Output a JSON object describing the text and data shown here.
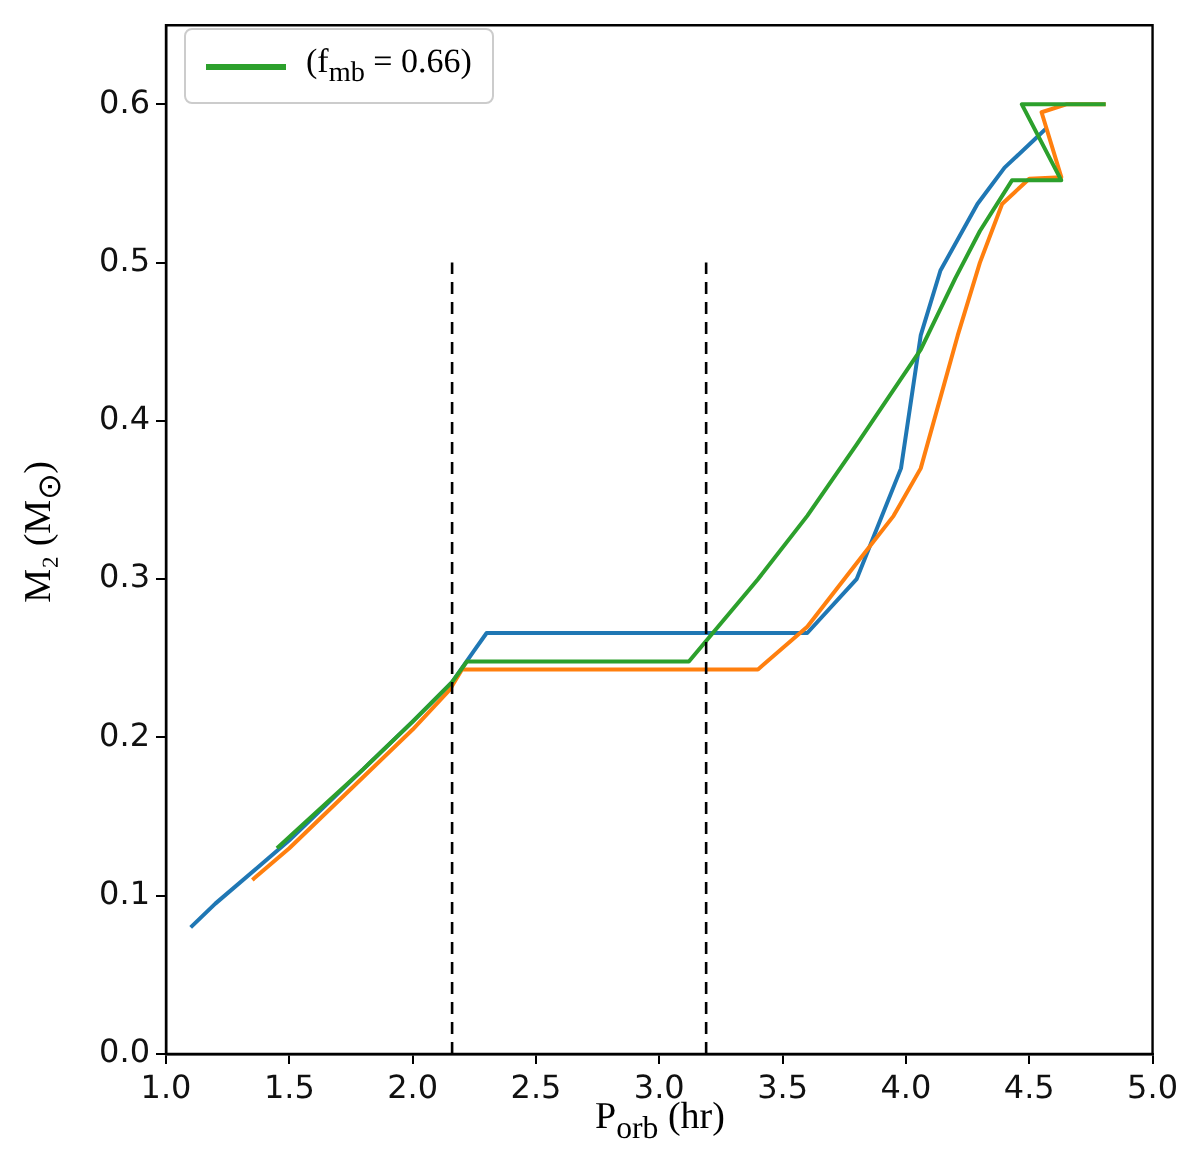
{
  "chart_data": {
    "type": "line",
    "xlabel": "P$_{orb}$ (hr)",
    "ylabel": "M₂ (M$_{⊙}$)",
    "xlim": [
      1,
      5
    ],
    "xticks": [
      {
        "value": 1,
        "label": "1.0"
      },
      {
        "value": 1.5,
        "label": "1.5"
      },
      {
        "value": 2,
        "label": "2.0"
      },
      {
        "value": 2.5,
        "label": "2.5"
      },
      {
        "value": 3,
        "label": "3.0"
      },
      {
        "value": 3.5,
        "label": "3.5"
      },
      {
        "value": 4,
        "label": "4.0"
      },
      {
        "value": 4.5,
        "label": "4.5"
      },
      {
        "value": 5,
        "label": "5.0"
      }
    ],
    "ylim": [
      0,
      0.65
    ],
    "yticks": [
      {
        "value": 0,
        "label": "0.0"
      },
      0.1,
      0.2,
      0.3,
      0.4,
      0.5,
      0.6
    ],
    "legend": "top left",
    "marker": "none",
    "series": [
      {
        "color": "#1f77b4",
        "x": [
          1.1,
          1.2,
          1.5,
          1.8,
          2.0,
          2.16,
          2.25,
          2.3,
          3.6,
          3.8,
          3.98,
          4.06,
          4.14,
          4.29,
          4.4,
          4.53,
          4.57
        ],
        "values": [
          0.08,
          0.095,
          0.135,
          0.18,
          0.21,
          0.235,
          0.255,
          0.266,
          0.266,
          0.3,
          0.37,
          0.454,
          0.495,
          0.537,
          0.56,
          0.579,
          0.585
        ]
      },
      {
        "color": "#ff7f0e",
        "x": [
          1.35,
          1.5,
          1.8,
          2.0,
          2.15,
          2.2,
          3.4,
          3.6,
          3.8,
          3.95,
          4.06,
          4.21,
          4.3,
          4.39,
          4.5,
          4.63,
          4.55,
          4.65,
          4.81
        ],
        "values": [
          0.11,
          0.13,
          0.175,
          0.205,
          0.23,
          0.243,
          0.243,
          0.27,
          0.31,
          0.34,
          0.37,
          0.454,
          0.5,
          0.537,
          0.553,
          0.554,
          0.595,
          0.6,
          0.6
        ]
      },
      {
        "name": "(f$_{mb}$ = 0.66)",
        "color": "#2ca02c",
        "x": [
          1.45,
          1.8,
          2.0,
          2.16,
          2.22,
          3.12,
          3.4,
          3.6,
          3.8,
          4.06,
          4.2,
          4.3,
          4.43,
          4.63,
          4.47,
          4.81
        ],
        "values": [
          0.13,
          0.18,
          0.21,
          0.235,
          0.248,
          0.248,
          0.3,
          0.34,
          0.385,
          0.445,
          0.49,
          0.52,
          0.552,
          0.552,
          0.6,
          0.6
        ]
      },
      {
        "color": "#000000",
        "line_style": "dashed",
        "x": [
          2.16,
          2.16
        ],
        "values": [
          0,
          0.5
        ]
      },
      {
        "color": "#000000",
        "line_style": "dashed",
        "x": [
          3.19,
          3.19
        ],
        "values": [
          0,
          0.5
        ]
      }
    ]
  }
}
